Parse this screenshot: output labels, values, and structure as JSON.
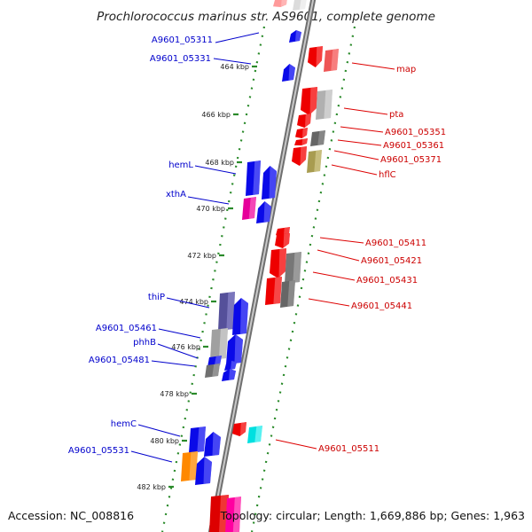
{
  "title": "Prochlorococcus marinus str. AS9601, complete genome",
  "footer": {
    "accession": "Accession: NC_008816",
    "topology": "Topology: circular; Length: 1,669,886 bp; Genes: 1,963"
  },
  "colors": {
    "backbone": "#8a8a8a",
    "ticks": "#2a8a2a",
    "left_strand": "#0000ee",
    "right_strand": "#ee0000"
  },
  "scale_ticks": [
    {
      "label": "464 kbp",
      "kbp": 464
    },
    {
      "label": "466 kbp",
      "kbp": 466
    },
    {
      "label": "468 kbp",
      "kbp": 468
    },
    {
      "label": "470 kbp",
      "kbp": 470
    },
    {
      "label": "472 kbp",
      "kbp": 472
    },
    {
      "label": "474 kbp",
      "kbp": 474
    },
    {
      "label": "476 kbp",
      "kbp": 476
    },
    {
      "label": "478 kbp",
      "kbp": 478
    },
    {
      "label": "480 kbp",
      "kbp": 480
    },
    {
      "label": "482 kbp",
      "kbp": 482
    }
  ],
  "left_genes": [
    "A9601_05311",
    "A9601_05331",
    "hemL",
    "xthA",
    "thiP",
    "A9601_05461",
    "phhB",
    "A9601_05481",
    "hemC",
    "A9601_05531"
  ],
  "right_genes": [
    "map",
    "pta",
    "A9601_05351",
    "A9601_05361",
    "A9601_05371",
    "hflC",
    "A9601_05411",
    "A9601_05421",
    "A9601_05431",
    "A9601_05441",
    "A9601_05511"
  ]
}
